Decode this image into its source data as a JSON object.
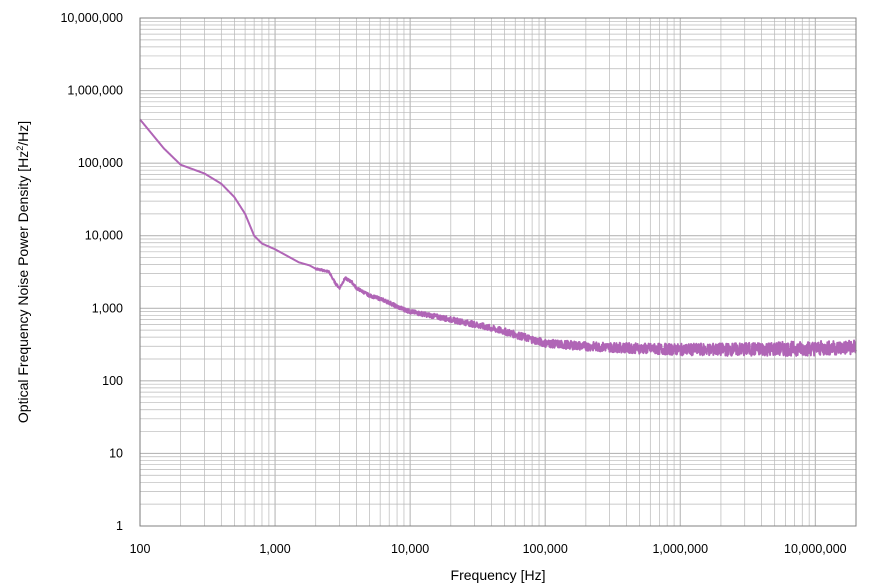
{
  "chart_data": {
    "type": "line",
    "title": "",
    "xlabel": "Frequency [Hz]",
    "ylabel_prefix": "Optical Frequency Noise Power Density [Hz",
    "ylabel_sup": "2",
    "ylabel_suffix": "/Hz]",
    "x_scale": "log",
    "y_scale": "log",
    "xlim": [
      100,
      20000000
    ],
    "ylim": [
      1,
      10000000
    ],
    "x_ticks": [
      100,
      1000,
      10000,
      100000,
      1000000,
      10000000
    ],
    "x_tick_labels": [
      "100",
      "1,000",
      "10,000",
      "100,000",
      "1,000,000",
      "10,000,000"
    ],
    "y_ticks": [
      1,
      10,
      100,
      1000,
      10000,
      100000,
      1000000,
      10000000
    ],
    "y_tick_labels": [
      "1",
      "10",
      "100",
      "1,000",
      "10,000",
      "100,000",
      "1,000,000",
      "10,000,000"
    ],
    "grid": true,
    "minor_grid": true,
    "legend": "none",
    "line_color": "#b065b6",
    "grid_color": "#b8b8b8",
    "series": [
      {
        "x": [
          100,
          150,
          200,
          300,
          400,
          500,
          600,
          700,
          800,
          1000,
          1200,
          1500,
          1800,
          2000,
          2500,
          2800,
          3000,
          3300,
          3700,
          4000,
          5000,
          6000,
          7000,
          8000,
          10000,
          15000,
          20000,
          30000,
          50000,
          70000,
          100000,
          200000,
          500000,
          1000000,
          2000000,
          5000000,
          10000000,
          20000000
        ],
        "y": [
          400000,
          160000,
          95000,
          72000,
          52000,
          34000,
          20000,
          10000,
          7800,
          6500,
          5400,
          4300,
          3900,
          3500,
          3200,
          2200,
          1900,
          2600,
          2300,
          1900,
          1500,
          1350,
          1200,
          1050,
          900,
          780,
          700,
          600,
          480,
          400,
          330,
          300,
          280,
          270,
          270,
          275,
          280,
          290
        ]
      }
    ]
  }
}
